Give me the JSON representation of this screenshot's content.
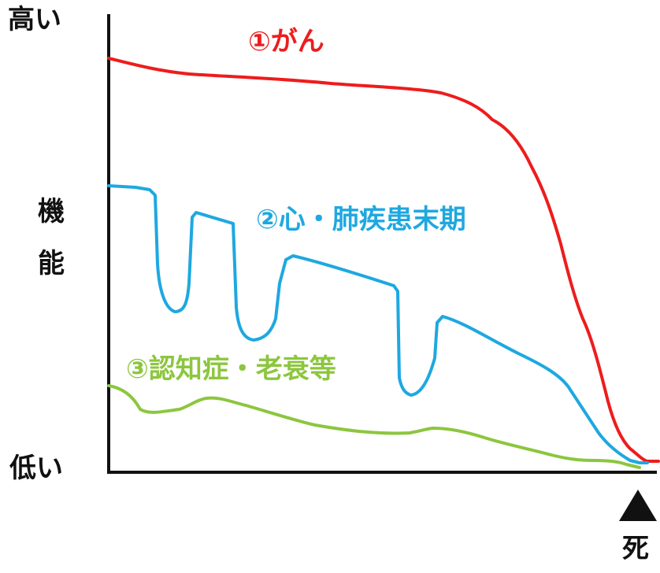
{
  "labels": {
    "high": "高い",
    "low": "低い",
    "function_1": "機",
    "function_2": "能",
    "death": "死"
  },
  "series": [
    {
      "label": "①がん",
      "color": "#ee1c1c"
    },
    {
      "label": "②心・肺疾患末期",
      "color": "#1ea8e0"
    },
    {
      "label": "③認知症・老衰等",
      "color": "#8cc63f"
    }
  ]
}
